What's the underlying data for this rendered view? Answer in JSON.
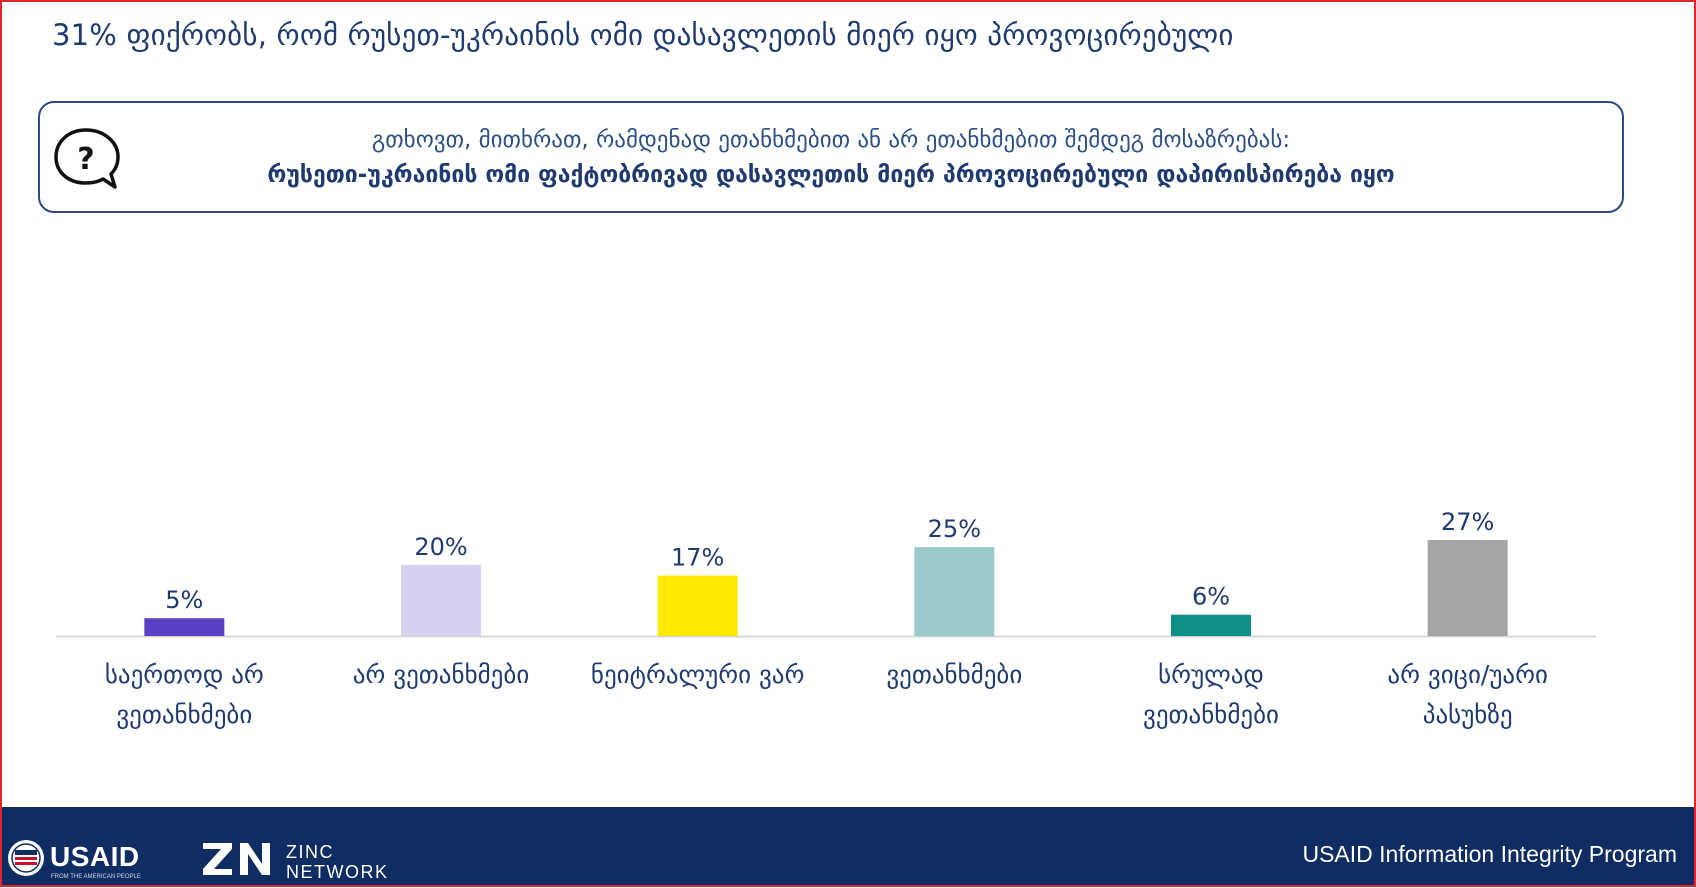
{
  "title": "31% ფიქრობს, რომ რუსეთ-უკრაინის ომი დასავლეთის მიერ იყო პროვოცირებული",
  "question": {
    "icon": "question-bubble-icon",
    "line1": "გთხოვთ, მითხრათ, რამდენად ეთანხმებით ან არ ეთანხმებით შემდეგ მოსაზრებას:",
    "line2": "რუსეთი-უკრაინის ომი ფაქტობრივად დასავლეთის მიერ პროვოცირებული დაპირისპირება იყო"
  },
  "chart_data": {
    "type": "bar",
    "categories": [
      [
        "საერთოდ არ",
        "ვეთანხმები"
      ],
      [
        "არ ვეთანხმები"
      ],
      [
        "ნეიტრალური ვარ"
      ],
      [
        "ვეთანხმები"
      ],
      [
        "სრულად",
        "ვეთანხმები"
      ],
      [
        "არ ვიცი/უარი",
        "პასუხზე"
      ]
    ],
    "values": [
      5,
      20,
      17,
      25,
      6,
      27
    ],
    "value_labels": [
      "5%",
      "20%",
      "17%",
      "25%",
      "6%",
      "27%"
    ],
    "colors": [
      "#5b3fc4",
      "#d6d1ee",
      "#ffe900",
      "#9bcacb",
      "#0e9088",
      "#a5a5a5"
    ],
    "axis_color": "#d0d0d0",
    "label_color": "#1f3a6e",
    "title": "",
    "xlabel": "",
    "ylabel": "",
    "ylim": [
      0,
      27
    ],
    "grid": false,
    "legend": "none"
  },
  "footer": {
    "usaid_logo": "USAID",
    "usaid_tagline": "FROM THE AMERICAN PEOPLE",
    "zinc_line1": "ZINC",
    "zinc_line2": "NETWORK",
    "program": "USAID Information Integrity Program",
    "background": "#0f2d63"
  }
}
